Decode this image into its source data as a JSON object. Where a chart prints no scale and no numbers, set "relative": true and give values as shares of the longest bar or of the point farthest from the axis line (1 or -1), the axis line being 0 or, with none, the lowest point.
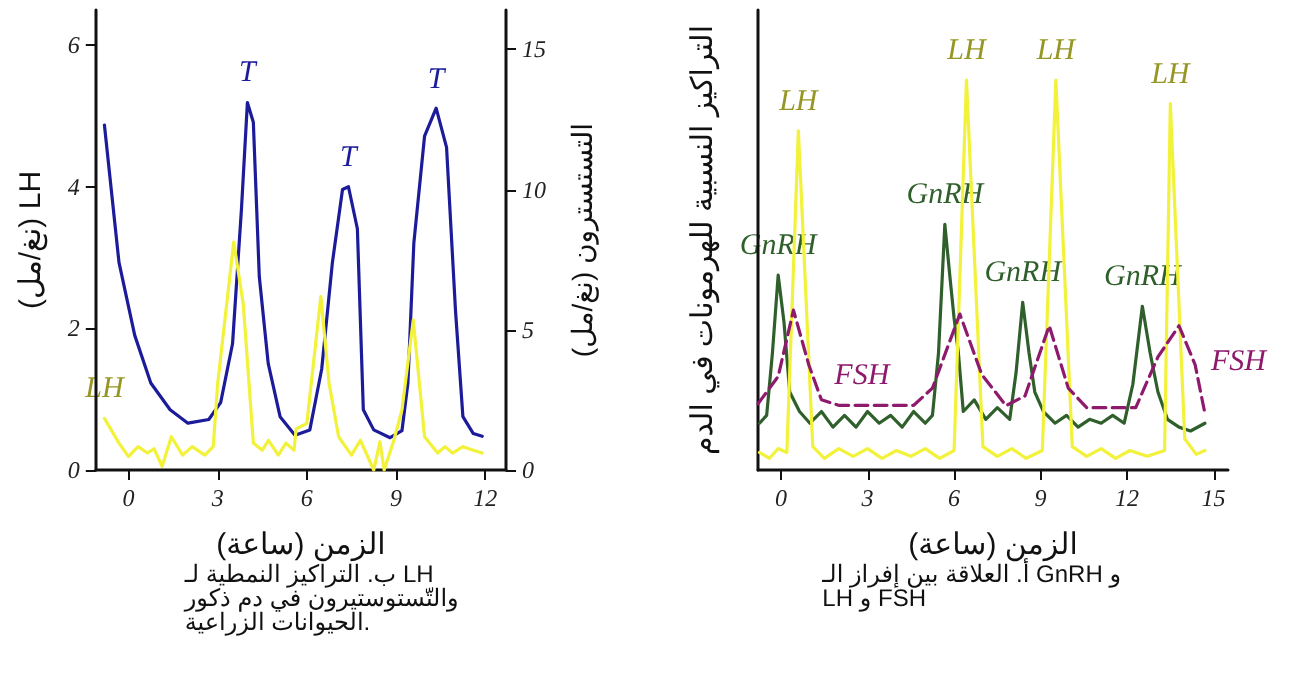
{
  "chart_data": [
    {
      "type": "line",
      "relative": true,
      "xlabel": "الزمن (ساعة)",
      "ylabel": "التراكيز النسبية للهرمونات في الدم",
      "xlim": [
        -0.8,
        15.5
      ],
      "xticks": [
        0,
        3,
        6,
        9,
        12,
        15
      ],
      "marker": "none",
      "series": [
        {
          "color": "#2f5f2a",
          "x": [
            -0.75,
            -0.5,
            -0.3,
            -0.1,
            0.1,
            0.3,
            0.64,
            1.0,
            1.4,
            1.8,
            2.2,
            2.6,
            3.0,
            3.4,
            3.8,
            4.2,
            4.6,
            5.0,
            5.25,
            5.46,
            5.68,
            5.85,
            6.0,
            6.15,
            6.32,
            6.7,
            7.1,
            7.5,
            7.93,
            8.15,
            8.38,
            8.6,
            8.8,
            9.1,
            9.5,
            9.9,
            10.3,
            10.7,
            11.1,
            11.5,
            11.9,
            12.2,
            12.53,
            12.8,
            13.07,
            13.4,
            13.8,
            14.2,
            14.7
          ],
          "values": [
            0.12,
            0.14,
            0.3,
            0.5,
            0.38,
            0.2,
            0.15,
            0.12,
            0.15,
            0.11,
            0.14,
            0.11,
            0.15,
            0.12,
            0.14,
            0.11,
            0.15,
            0.12,
            0.14,
            0.3,
            0.63,
            0.5,
            0.39,
            0.3,
            0.15,
            0.18,
            0.13,
            0.16,
            0.13,
            0.25,
            0.43,
            0.3,
            0.2,
            0.15,
            0.12,
            0.14,
            0.11,
            0.13,
            0.12,
            0.14,
            0.12,
            0.22,
            0.42,
            0.3,
            0.2,
            0.13,
            0.11,
            0.1,
            0.12
          ]
        },
        {
          "color": "#f2f23a",
          "x": [
            -0.75,
            -0.4,
            -0.1,
            0.2,
            0.6,
            1.1,
            1.5,
            2.0,
            2.5,
            3.0,
            3.5,
            4.0,
            4.5,
            5.0,
            5.5,
            6.0,
            6.43,
            7.0,
            7.5,
            8.0,
            8.5,
            9.06,
            9.53,
            10.1,
            10.6,
            11.1,
            11.6,
            12.1,
            12.7,
            13.3,
            13.5,
            14.0,
            14.4,
            14.7
          ],
          "values": [
            0.045,
            0.03,
            0.055,
            0.045,
            0.87,
            0.06,
            0.03,
            0.055,
            0.035,
            0.055,
            0.03,
            0.05,
            0.035,
            0.055,
            0.03,
            0.05,
            1.0,
            0.06,
            0.035,
            0.055,
            0.03,
            0.05,
            1.0,
            0.06,
            0.035,
            0.055,
            0.03,
            0.05,
            0.035,
            0.05,
            0.94,
            0.08,
            0.04,
            0.05
          ]
        },
        {
          "color": "#8e1a6e",
          "line_style": "dashed",
          "x": [
            -0.8,
            -0.1,
            0.43,
            0.96,
            1.4,
            2.0,
            3.0,
            4.0,
            4.6,
            5.25,
            6.2,
            6.96,
            7.8,
            8.46,
            9.3,
            9.96,
            10.6,
            11.5,
            12.3,
            13.07,
            13.8,
            14.36,
            14.7
          ],
          "values": [
            0.17,
            0.24,
            0.41,
            0.27,
            0.18,
            0.166,
            0.166,
            0.166,
            0.166,
            0.21,
            0.4,
            0.245,
            0.165,
            0.19,
            0.37,
            0.21,
            0.16,
            0.16,
            0.16,
            0.29,
            0.37,
            0.27,
            0.145
          ]
        }
      ],
      "annotations": [
        {
          "text": "GnRH",
          "x": -0.1,
          "y": 0.5
        },
        {
          "text": "GnRH",
          "x": 5.68,
          "y": 0.63
        },
        {
          "text": "GnRH",
          "x": 8.38,
          "y": 0.43
        },
        {
          "text": "GnRH",
          "x": 12.53,
          "y": 0.42
        },
        {
          "text": "LH",
          "x": 0.6,
          "y": 0.87
        },
        {
          "text": "LH",
          "x": 6.43,
          "y": 1.0
        },
        {
          "text": "LH",
          "x": 9.53,
          "y": 1.0
        },
        {
          "text": "LH",
          "x": 13.5,
          "y": 0.94
        },
        {
          "text": "FSH",
          "x": 2.8,
          "y": 0.166
        },
        {
          "text": "FSH",
          "x": 14.7,
          "y": 0.145
        },
        "أ. العلاقة بين إفراز الـ GnRH و LH و FSH"
      ]
    },
    {
      "type": "line",
      "xlabel": "الزمن (ساعة)",
      "ylabel": "(نغ/مل) LH",
      "y2label": "التستسترون (نغ/مل)",
      "xlim": [
        -1.1,
        12.7
      ],
      "xticks": [
        0,
        3,
        6,
        9,
        12
      ],
      "ylim": [
        0,
        6.5
      ],
      "yticks": [
        0,
        2,
        4,
        6
      ],
      "y2lim": [
        0,
        16.4
      ],
      "y2ticks": [
        0,
        5,
        10,
        15
      ],
      "marker": "none",
      "series": [
        {
          "color": "#1c1c9a",
          "axis": "y2",
          "x": [
            -0.81,
            -0.32,
            0.21,
            0.75,
            1.4,
            2.0,
            2.7,
            3.1,
            3.5,
            3.8,
            4.0,
            4.2,
            4.4,
            4.7,
            5.1,
            5.6,
            6.1,
            6.5,
            6.86,
            7.2,
            7.4,
            7.7,
            7.9,
            8.25,
            8.8,
            9.2,
            9.4,
            9.6,
            9.96,
            10.35,
            10.7,
            11.0,
            11.25,
            11.6,
            11.9
          ],
          "values": [
            12.3,
            7.4,
            4.8,
            3.1,
            2.15,
            1.67,
            1.8,
            2.4,
            4.5,
            9.3,
            13.1,
            12.4,
            6.9,
            3.8,
            1.9,
            1.24,
            1.43,
            3.6,
            7.4,
            10.0,
            10.1,
            8.6,
            2.15,
            1.43,
            1.15,
            1.4,
            3.1,
            8.1,
            11.9,
            12.9,
            11.5,
            5.7,
            1.9,
            1.3,
            1.2
          ]
        },
        {
          "color": "#f2f23a",
          "x": [
            -0.81,
            -0.32,
            0,
            0.32,
            0.64,
            0.86,
            1.13,
            1.44,
            1.82,
            2.14,
            2.57,
            2.85,
            3.0,
            3.54,
            3.86,
            4.2,
            4.5,
            4.71,
            5.04,
            5.3,
            5.57,
            5.64,
            6.0,
            6.47,
            6.75,
            7.07,
            7.5,
            7.8,
            8.25,
            8.46,
            8.6,
            8.9,
            9.2,
            9.58,
            9.96,
            10.4,
            10.65,
            10.9,
            11.25,
            11.6,
            11.9
          ],
          "values": [
            0.73,
            0.38,
            0.19,
            0.33,
            0.24,
            0.3,
            0.05,
            0.47,
            0.21,
            0.33,
            0.21,
            0.33,
            1.22,
            3.22,
            2.35,
            0.38,
            0.28,
            0.42,
            0.21,
            0.38,
            0.28,
            0.58,
            0.66,
            2.45,
            1.22,
            0.47,
            0.21,
            0.42,
            0.0,
            0.4,
            0.0,
            0.38,
            0.85,
            2.12,
            0.47,
            0.24,
            0.33,
            0.24,
            0.33,
            0.28,
            0.24
          ]
        }
      ],
      "annotations": [
        {
          "text": "T",
          "x": 4.0,
          "y": 5.2
        },
        {
          "text": "T",
          "x": 7.4,
          "y": 4.0
        },
        {
          "text": "T",
          "x": 10.35,
          "y": 5.1
        },
        {
          "text": "LH",
          "x": -0.81,
          "y": 0.73
        },
        "ب. التراكيز النمطية لـ LH والتّستوستيرون في دم ذكور الحيوانات الزراعية."
      ]
    }
  ]
}
